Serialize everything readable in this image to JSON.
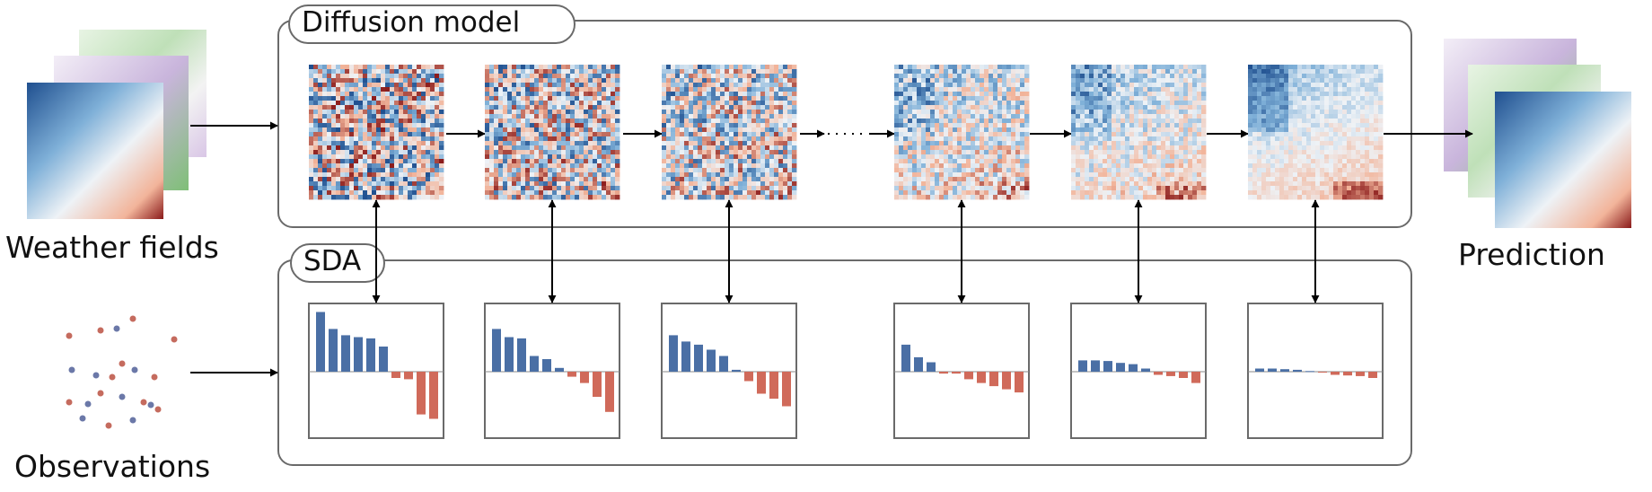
{
  "labels": {
    "weather_fields": "Weather fields",
    "observations": "Observations",
    "prediction": "Prediction",
    "diffusion_title": "Diffusion model",
    "sda_title": "SDA"
  },
  "colors": {
    "blue": "#4a6fa5",
    "red": "#d06a5a",
    "frame": "#6a6a6a",
    "arrow": "#000000"
  },
  "diffusion_steps": [
    {
      "noise": 1.0
    },
    {
      "noise": 0.93
    },
    {
      "noise": 0.86
    },
    {
      "noise": 0.58
    },
    {
      "noise": 0.4
    },
    {
      "noise": 0.2
    }
  ],
  "sda_residuals": [
    [
      0.95,
      0.68,
      0.58,
      0.55,
      0.53,
      0.4,
      -0.1,
      -0.12,
      -0.68,
      -0.75
    ],
    [
      0.68,
      0.55,
      0.53,
      0.25,
      0.2,
      0.06,
      -0.08,
      -0.18,
      -0.4,
      -0.64
    ],
    [
      0.58,
      0.48,
      0.43,
      0.35,
      0.25,
      0.03,
      -0.15,
      -0.35,
      -0.43,
      -0.55
    ],
    [
      0.43,
      0.23,
      0.15,
      -0.03,
      -0.03,
      -0.12,
      -0.18,
      -0.23,
      -0.28,
      -0.33
    ],
    [
      0.18,
      0.18,
      0.17,
      0.14,
      0.12,
      0.05,
      -0.05,
      -0.07,
      -0.1,
      -0.18
    ],
    [
      0.05,
      0.05,
      0.04,
      0.03,
      0.01,
      -0.01,
      -0.05,
      -0.06,
      -0.07,
      -0.1
    ]
  ]
}
